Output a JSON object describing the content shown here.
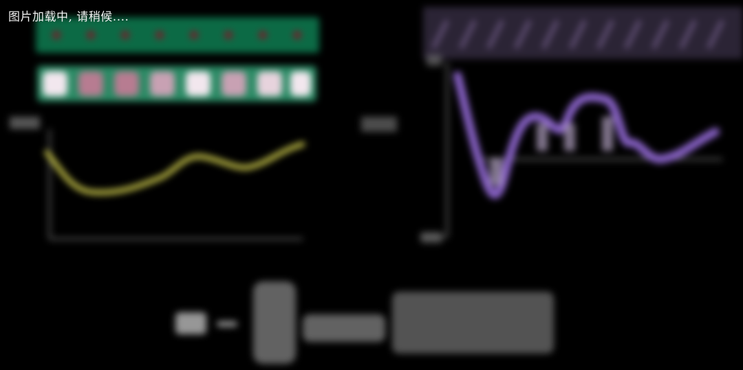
{
  "loading_text": "图片加载中, 请稍候....",
  "colors": {
    "background": "#000000",
    "loading_text": "#f2f2f2",
    "strip_green": "#0c6a45",
    "strip_mint": "#7fe3b8",
    "dot_red": "#7a1d2a",
    "line_yellow": "#c9c64a",
    "line_purple": "#8a63c9",
    "axis_gray": "#4c4c4c"
  },
  "icons": {
    "status": "loading-icon"
  }
}
